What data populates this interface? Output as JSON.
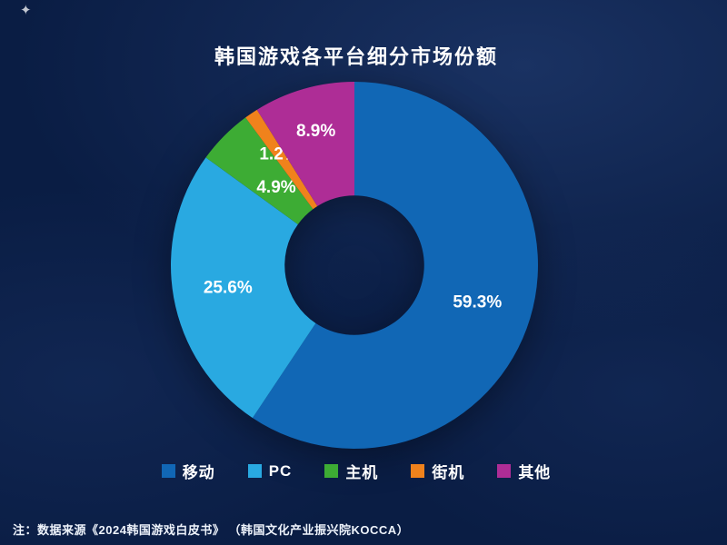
{
  "title": "韩国游戏各平台细分市场份额",
  "note": "注：数据来源《2024韩国游戏白皮书》 （韩国文化产业振兴院KOCCA）",
  "decor": {
    "sparkle": "✦"
  },
  "chart_data": {
    "type": "pie",
    "title": "韩国游戏各平台细分市场份额",
    "donut": true,
    "start_angle_deg": 0,
    "direction": "clockwise",
    "legend_position": "bottom",
    "inner_radius_ratio": 0.38,
    "label_radius_ratios": [
      0.7,
      0.7,
      0.6,
      0.73,
      0.76
    ],
    "slices": [
      {
        "label": "移动",
        "value": 59.3,
        "display": "59.3%",
        "color": "#1167b5"
      },
      {
        "label": "PC",
        "value": 25.6,
        "display": "25.6%",
        "color": "#29a9e1"
      },
      {
        "label": "主机",
        "value": 4.9,
        "display": "4.9%",
        "color": "#3dac34"
      },
      {
        "label": "街机",
        "value": 1.2,
        "display": "1.2%",
        "color": "#f0821c"
      },
      {
        "label": "其他",
        "value": 8.9,
        "display": "8.9%",
        "color": "#ae2d96"
      }
    ]
  }
}
